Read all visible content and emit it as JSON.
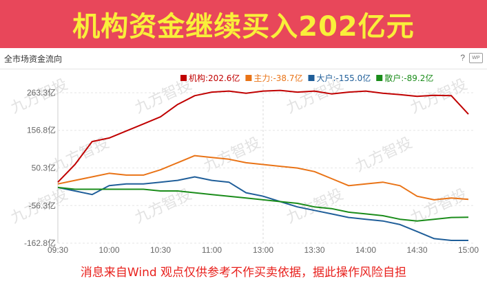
{
  "banner": {
    "title": "机构资金继续买入202亿元"
  },
  "panel": {
    "title": "全市场资金流向",
    "help_icon": "?",
    "wp_icon": "WP"
  },
  "watermark": "九方智投",
  "footer": {
    "disclaimer": "消息来自Wind 观点仅供参考不作买卖依据，据此操作风险自担"
  },
  "chart_data": {
    "type": "line",
    "title": "",
    "xlabel": "",
    "ylabel": "",
    "x_ticks": [
      "09:30",
      "10:00",
      "10:30",
      "11:00",
      "13:00",
      "13:30",
      "14:00",
      "14:30",
      "15:00"
    ],
    "y_ticks": [
      "263.3亿",
      "156.8亿",
      "50.3亿",
      "-56.3亿",
      "-162.8亿"
    ],
    "ylim": [
      -162.8,
      263.3
    ],
    "grid": true,
    "legend_position": "top-right",
    "x": [
      "09:30",
      "09:40",
      "09:50",
      "10:00",
      "10:10",
      "10:20",
      "10:30",
      "10:40",
      "10:50",
      "11:00",
      "11:10",
      "11:20",
      "11:30/13:00",
      "13:10",
      "13:20",
      "13:30",
      "13:40",
      "13:50",
      "14:00",
      "14:10",
      "14:20",
      "14:30",
      "14:40",
      "14:50",
      "15:00"
    ],
    "series": [
      {
        "name": "机构",
        "legend": "机构:202.6亿",
        "color": "#c00000",
        "values": [
          10,
          60,
          125,
          135,
          155,
          175,
          195,
          230,
          255,
          265,
          268,
          262,
          268,
          270,
          265,
          268,
          260,
          265,
          268,
          262,
          258,
          253,
          256,
          255,
          202.6
        ]
      },
      {
        "name": "主力",
        "legend": "主力:-38.7亿",
        "color": "#e97316",
        "values": [
          5,
          15,
          25,
          35,
          30,
          30,
          45,
          65,
          85,
          80,
          75,
          65,
          60,
          55,
          50,
          40,
          20,
          0,
          5,
          10,
          0,
          -30,
          -40,
          -35,
          -38.7
        ]
      },
      {
        "name": "大户",
        "legend": "大户:-155.0亿",
        "color": "#1f5e99",
        "values": [
          -5,
          -15,
          -25,
          0,
          5,
          5,
          10,
          15,
          25,
          15,
          10,
          -20,
          -30,
          -45,
          -60,
          -70,
          -80,
          -90,
          -95,
          -100,
          -110,
          -130,
          -150,
          -155,
          -155.0
        ]
      },
      {
        "name": "散户",
        "legend": "散户:-89.2亿",
        "color": "#1a8c1a",
        "values": [
          -5,
          -10,
          -10,
          -10,
          -10,
          -10,
          -15,
          -15,
          -20,
          -25,
          -30,
          -35,
          -40,
          -45,
          -50,
          -60,
          -65,
          -75,
          -80,
          -85,
          -95,
          -100,
          -95,
          -90,
          -89.2
        ]
      }
    ]
  }
}
